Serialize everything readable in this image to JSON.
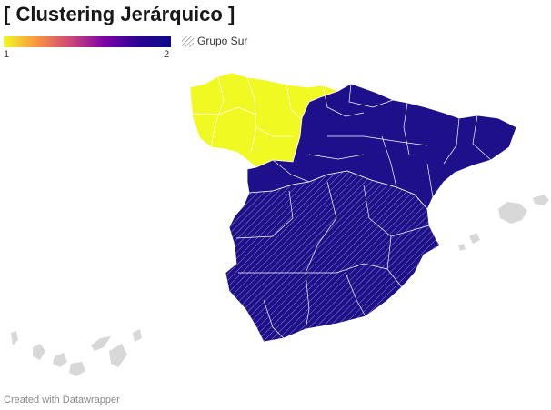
{
  "title": "[ Clustering Jerárquico ]",
  "legend": {
    "min_label": "1",
    "max_label": "2",
    "gradient_colors": [
      "#f0f921",
      "#f89441",
      "#cc4778",
      "#7e03a8",
      "#2a0593",
      "#0d0887"
    ],
    "hatch_label": "Grupo Sur"
  },
  "colors": {
    "cluster_1": "#f0f921",
    "cluster_2": "#1e0f8a",
    "border": "#ffffff",
    "hatch": "#8a86c4",
    "no_data": "#d8d8d8"
  },
  "footer": "Created with Datawrapper"
}
